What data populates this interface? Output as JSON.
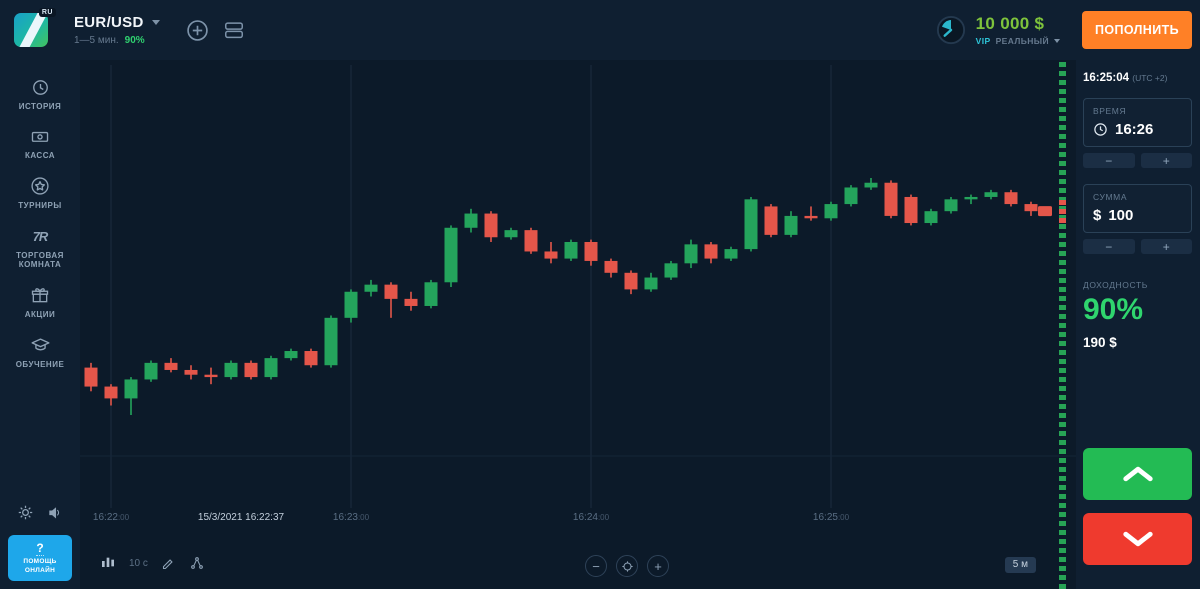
{
  "topbar": {
    "logo_badge": "RU",
    "asset": "EUR/USD",
    "asset_sub": "1—5 мин.",
    "asset_payout": "90%",
    "balance": "10 000 $",
    "account_vip": "VIP",
    "account_type": "РЕАЛЬНЫЙ",
    "deposit_button": "ПОПОЛНИТЬ"
  },
  "sidebar": {
    "items": [
      {
        "label": "ИСТОРИЯ"
      },
      {
        "label": "КАССА"
      },
      {
        "label": "ТУРНИРЫ"
      },
      {
        "label": "ТОРГОВАЯ КОМНАТА"
      },
      {
        "label": "АКЦИИ"
      },
      {
        "label": "ОБУЧЕНИЕ"
      }
    ],
    "trade_room_glyph": "7R",
    "help_button": {
      "q": "?",
      "label": "ПОМОЩЬ\nОНЛАЙН"
    }
  },
  "chart": {
    "footer": {
      "interval": "10 с",
      "zoom_out": "−",
      "zoom_in": "+",
      "range_badge": "5 м"
    }
  },
  "panel": {
    "clock": "16:25:04",
    "utc": "(UTC +2)",
    "time_label": "ВРЕМЯ",
    "time_value": "16:26",
    "amount_label": "СУММА",
    "amount_currency": "$",
    "amount_value": "100",
    "payout_label": "ДОХОДНОСТЬ",
    "payout_percent": "90%",
    "payout_amount": "190 $",
    "minus": "−",
    "plus": "+"
  },
  "chart_data": {
    "type": "candlestick",
    "instrument": "EUR/USD",
    "value_scale": "relative 0-100 (no price axis visible in screenshot)",
    "candle_interval_seconds": 5,
    "colors": {
      "up": "#24a45c",
      "down": "#e4564a"
    },
    "x_labels": [
      {
        "time": "16:22",
        "seconds": "00",
        "candle_index": 1
      },
      {
        "time": "16:23",
        "seconds": "00",
        "candle_index": 13
      },
      {
        "time": "16:24",
        "seconds": "00",
        "candle_index": 25
      },
      {
        "time": "16:25",
        "seconds": "00",
        "candle_index": 37
      }
    ],
    "marker": {
      "text": "15/3/2021 16:22:37",
      "candle_index": 7.5
    },
    "candles": [
      {
        "t": "16:21:55",
        "o": 20,
        "h": 22,
        "l": 10,
        "c": 12
      },
      {
        "t": "16:22:00",
        "o": 12,
        "h": 13,
        "l": 4,
        "c": 7
      },
      {
        "t": "16:22:05",
        "o": 7,
        "h": 16,
        "l": 0,
        "c": 15
      },
      {
        "t": "16:22:10",
        "o": 15,
        "h": 23,
        "l": 14,
        "c": 22
      },
      {
        "t": "16:22:15",
        "o": 22,
        "h": 24,
        "l": 18,
        "c": 19
      },
      {
        "t": "16:22:20",
        "o": 19,
        "h": 21,
        "l": 15,
        "c": 17
      },
      {
        "t": "16:22:25",
        "o": 17,
        "h": 20,
        "l": 13,
        "c": 16
      },
      {
        "t": "16:22:30",
        "o": 16,
        "h": 23,
        "l": 15,
        "c": 22
      },
      {
        "t": "16:22:35",
        "o": 22,
        "h": 23,
        "l": 15,
        "c": 16
      },
      {
        "t": "16:22:40",
        "o": 16,
        "h": 25,
        "l": 15,
        "c": 24
      },
      {
        "t": "16:22:45",
        "o": 24,
        "h": 28,
        "l": 23,
        "c": 27
      },
      {
        "t": "16:22:50",
        "o": 27,
        "h": 28,
        "l": 20,
        "c": 21
      },
      {
        "t": "16:22:55",
        "o": 21,
        "h": 42,
        "l": 20,
        "c": 41
      },
      {
        "t": "16:23:00",
        "o": 41,
        "h": 53,
        "l": 39,
        "c": 52
      },
      {
        "t": "16:23:05",
        "o": 52,
        "h": 57,
        "l": 50,
        "c": 55
      },
      {
        "t": "16:23:10",
        "o": 55,
        "h": 56,
        "l": 41,
        "c": 49
      },
      {
        "t": "16:23:15",
        "o": 49,
        "h": 52,
        "l": 44,
        "c": 46
      },
      {
        "t": "16:23:20",
        "o": 46,
        "h": 57,
        "l": 45,
        "c": 56
      },
      {
        "t": "16:23:25",
        "o": 56,
        "h": 80,
        "l": 54,
        "c": 79
      },
      {
        "t": "16:23:30",
        "o": 79,
        "h": 87,
        "l": 77,
        "c": 85
      },
      {
        "t": "16:23:35",
        "o": 85,
        "h": 86,
        "l": 73,
        "c": 75
      },
      {
        "t": "16:23:40",
        "o": 75,
        "h": 79,
        "l": 74,
        "c": 78
      },
      {
        "t": "16:23:45",
        "o": 78,
        "h": 79,
        "l": 68,
        "c": 69
      },
      {
        "t": "16:23:50",
        "o": 69,
        "h": 73,
        "l": 64,
        "c": 66
      },
      {
        "t": "16:23:55",
        "o": 66,
        "h": 74,
        "l": 65,
        "c": 73
      },
      {
        "t": "16:24:00",
        "o": 73,
        "h": 74,
        "l": 63,
        "c": 65
      },
      {
        "t": "16:24:05",
        "o": 65,
        "h": 66,
        "l": 58,
        "c": 60
      },
      {
        "t": "16:24:10",
        "o": 60,
        "h": 61,
        "l": 51,
        "c": 53
      },
      {
        "t": "16:24:15",
        "o": 53,
        "h": 60,
        "l": 52,
        "c": 58
      },
      {
        "t": "16:24:20",
        "o": 58,
        "h": 65,
        "l": 57,
        "c": 64
      },
      {
        "t": "16:24:25",
        "o": 64,
        "h": 74,
        "l": 62,
        "c": 72
      },
      {
        "t": "16:24:30",
        "o": 72,
        "h": 73,
        "l": 64,
        "c": 66
      },
      {
        "t": "16:24:35",
        "o": 66,
        "h": 71,
        "l": 65,
        "c": 70
      },
      {
        "t": "16:24:40",
        "o": 70,
        "h": 92,
        "l": 69,
        "c": 91
      },
      {
        "t": "16:24:45",
        "o": 88,
        "h": 89,
        "l": 75,
        "c": 76
      },
      {
        "t": "16:24:50",
        "o": 76,
        "h": 86,
        "l": 75,
        "c": 84
      },
      {
        "t": "16:24:55",
        "o": 84,
        "h": 88,
        "l": 82,
        "c": 83
      },
      {
        "t": "16:25:00",
        "o": 83,
        "h": 90,
        "l": 82,
        "c": 89
      },
      {
        "t": "16:25:05",
        "o": 89,
        "h": 97,
        "l": 88,
        "c": 96
      },
      {
        "t": "16:25:10",
        "o": 96,
        "h": 100,
        "l": 95,
        "c": 98
      },
      {
        "t": "16:25:15",
        "o": 98,
        "h": 99,
        "l": 83,
        "c": 84
      },
      {
        "t": "16:25:20",
        "o": 92,
        "h": 93,
        "l": 80,
        "c": 81
      },
      {
        "t": "16:25:25",
        "o": 81,
        "h": 87,
        "l": 80,
        "c": 86
      },
      {
        "t": "16:25:30",
        "o": 86,
        "h": 92,
        "l": 85,
        "c": 91
      },
      {
        "t": "16:25:35",
        "o": 91,
        "h": 93,
        "l": 89,
        "c": 92
      },
      {
        "t": "16:25:40",
        "o": 92,
        "h": 95,
        "l": 91,
        "c": 94
      },
      {
        "t": "16:25:45",
        "o": 94,
        "h": 95,
        "l": 88,
        "c": 89
      },
      {
        "t": "16:25:50",
        "o": 89,
        "h": 90,
        "l": 84,
        "c": 86
      }
    ]
  }
}
